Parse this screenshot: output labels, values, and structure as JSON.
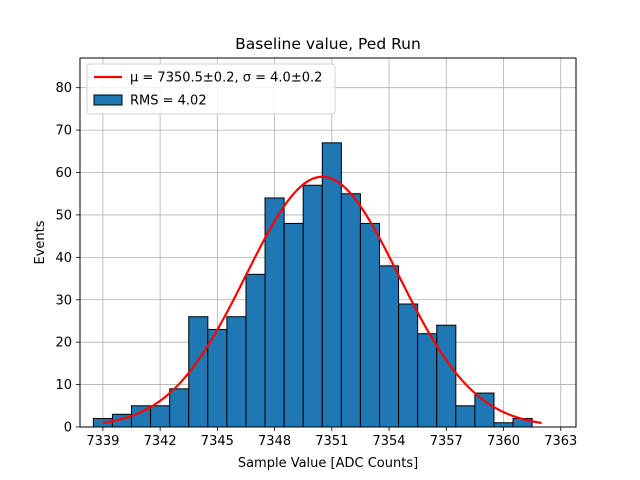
{
  "chart_data": {
    "type": "bar",
    "title": "Baseline value, Ped Run",
    "xlabel": "Sample Value [ADC Counts]",
    "ylabel": "Events",
    "xlim": [
      7337.8,
      7363.8
    ],
    "ylim": [
      0,
      87
    ],
    "x_ticks": [
      7339,
      7342,
      7345,
      7348,
      7351,
      7354,
      7357,
      7360,
      7363
    ],
    "y_ticks": [
      0,
      10,
      20,
      30,
      40,
      50,
      60,
      70,
      80
    ],
    "grid": true,
    "bin_width": 1.0,
    "bin_starts": [
      7338.5,
      7339.5,
      7340.5,
      7341.5,
      7342.5,
      7343.5,
      7344.5,
      7345.5,
      7346.5,
      7347.5,
      7348.5,
      7349.5,
      7350.5,
      7351.5,
      7352.5,
      7353.5,
      7354.5,
      7355.5,
      7356.5,
      7357.5,
      7358.5,
      7359.5,
      7360.5
    ],
    "values": [
      2,
      3,
      5,
      5,
      9,
      26,
      23,
      26,
      36,
      54,
      48,
      57,
      67,
      55,
      48,
      38,
      29,
      22,
      24,
      5,
      8,
      1,
      2
    ],
    "series": [
      {
        "name": "RMS = 4.02",
        "kind": "histogram",
        "color": "#1f77b4",
        "edgecolor": "#000000"
      },
      {
        "name": "μ = 7350.5±0.2, σ = 4.0±0.2",
        "kind": "gaussian-fit",
        "color": "#ff0000",
        "mu": 7350.5,
        "sigma": 4.0,
        "amplitude": 59,
        "x_range": [
          7339,
          7362
        ]
      }
    ],
    "legend": {
      "placement": "top-left",
      "entries": [
        {
          "label": "μ = 7350.5±0.2, σ = 4.0±0.2",
          "kind": "line",
          "color": "#ff0000"
        },
        {
          "label": "RMS = 4.02",
          "kind": "patch",
          "color": "#1f77b4"
        }
      ]
    }
  }
}
